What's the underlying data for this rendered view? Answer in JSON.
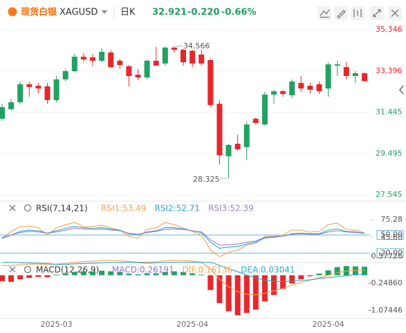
{
  "header": {
    "brand": "现货白银",
    "symbol": "XAGUSD",
    "period": "日K",
    "price": "32.921",
    "change": "-0.220",
    "change_pct": "-0.66%"
  },
  "chart_data": [
    {
      "type": "candlestick",
      "categories": [
        null,
        null,
        null,
        null,
        null,
        null,
        "2025-03",
        null,
        null,
        null,
        null,
        null,
        null,
        null,
        null,
        null,
        null,
        null,
        null,
        null,
        null,
        "2025-04",
        null,
        null,
        null,
        null,
        null,
        null,
        null,
        null,
        null,
        null,
        null,
        null,
        null,
        null,
        "2025-04",
        null,
        null,
        null,
        null
      ],
      "open": [
        31.14,
        31.59,
        31.92,
        32.77,
        32.7,
        32.67,
        32.02,
        33.0,
        33.39,
        34.07,
        34.04,
        33.88,
        34.27,
        33.88,
        33.62,
        33.22,
        33.09,
        33.88,
        33.75,
        34.5,
        34.4,
        34.35,
        34.17,
        33.91,
        31.85,
        29.37,
        29.96,
        29.8,
        31.14,
        30.87,
        32.28,
        32.44,
        32.25,
        32.83,
        32.7,
        32.77,
        32.57,
        33.65,
        33.58,
        33.16,
        33.29
      ],
      "high": [
        31.85,
        32.08,
        32.9,
        32.9,
        32.83,
        32.83,
        33.16,
        33.49,
        34.2,
        34.24,
        34.2,
        34.47,
        34.37,
        33.98,
        33.68,
        33.49,
        33.94,
        34.53,
        34.55,
        34.566,
        34.45,
        34.4,
        34.4,
        33.98,
        32.02,
        29.96,
        30.39,
        31.01,
        31.2,
        32.41,
        32.51,
        32.51,
        33.0,
        33.16,
        32.83,
        32.9,
        33.81,
        33.88,
        33.81,
        33.39,
        33.32
      ],
      "low": [
        31.04,
        31.53,
        31.85,
        32.18,
        32.34,
        31.85,
        31.92,
        32.9,
        33.32,
        33.81,
        33.62,
        33.81,
        33.55,
        33.49,
        32.67,
        32.96,
        33.0,
        33.65,
        33.65,
        34.25,
        33.65,
        33.58,
        33.65,
        31.69,
        28.98,
        28.325,
        29.63,
        29.18,
        30.87,
        30.81,
        31.85,
        32.18,
        32.12,
        32.41,
        32.34,
        32.31,
        32.18,
        33.16,
        33.0,
        32.83,
        32.88
      ],
      "close": [
        31.69,
        31.92,
        32.77,
        32.64,
        32.57,
        32.02,
        33.0,
        33.39,
        34.07,
        33.94,
        33.88,
        34.3,
        33.58,
        33.68,
        33.16,
        33.09,
        33.88,
        33.65,
        34.5,
        34.4,
        33.81,
        33.75,
        33.75,
        31.79,
        29.41,
        29.9,
        29.7,
        30.87,
        30.94,
        32.28,
        32.44,
        32.31,
        32.9,
        32.57,
        32.51,
        32.44,
        33.71,
        33.71,
        33.16,
        33.29,
        32.92
      ],
      "up_color": "#21a163",
      "down_color": "#e8262c",
      "ylim": [
        27.285,
        35.575
      ],
      "yticks": [
        35.346,
        33.396,
        31.445,
        29.495,
        27.545
      ],
      "grid": true,
      "high_label": 34.566,
      "low_label": 28.325
    },
    {
      "type": "line",
      "indicator": "RSI(7,14,21)",
      "series": [
        {
          "label": "RSI1:53.49",
          "color": "#f5a14a",
          "values": [
            44,
            55.8,
            63.8,
            65,
            61.5,
            50,
            61.5,
            67,
            70.7,
            63.8,
            63.8,
            66,
            61.5,
            58,
            47.7,
            44.4,
            59.3,
            61.5,
            70.7,
            67,
            61.5,
            55.8,
            50.1,
            24.9,
            14,
            21.5,
            24.9,
            33,
            36.4,
            47.8,
            47.8,
            50,
            58.1,
            58.1,
            54.7,
            55.8,
            67.3,
            69.6,
            59.3,
            58.1,
            53.49
          ]
        },
        {
          "label": "RSI2:52.71",
          "color": "#26a9c8",
          "values": [
            44,
            50,
            56,
            58,
            57,
            53,
            57,
            61,
            64,
            62,
            61,
            62,
            60,
            58,
            52,
            50,
            55,
            57,
            62,
            62,
            60,
            57,
            54,
            38,
            28,
            30,
            31,
            35,
            38,
            45,
            46,
            48,
            52,
            53,
            52,
            52,
            58,
            60,
            56,
            55,
            52.71
          ]
        },
        {
          "label": "RSI3:52.39",
          "color": "#9b7fd4",
          "values": [
            46,
            50,
            54,
            56,
            55,
            53,
            55,
            58,
            61,
            60,
            59,
            60,
            58,
            57,
            53,
            51,
            54,
            56,
            59,
            60,
            59,
            57,
            55,
            42,
            33,
            34,
            35,
            38,
            40,
            46,
            47,
            48,
            51,
            52,
            51,
            51,
            55,
            57,
            55,
            54,
            52.39
          ]
        }
      ],
      "ylim": [
        16.93,
        75.28
      ],
      "yticks": [
        75.28,
        {
          "value": 50,
          "label": "50.00",
          "highlight": true
        },
        {
          "value": 45.6,
          "label": "45.60"
        },
        16.93,
        {
          "value": 20,
          "label": "20.00",
          "highlight": true
        }
      ]
    },
    {
      "type": "macd",
      "indicator": "MACD(12,26,9)",
      "series": [
        {
          "label": "MACD:0.26191",
          "color": "#8e6fd0",
          "up_color": "#21a163",
          "down_color": "#e8262c",
          "values": [
            -0.18,
            -0.2,
            -0.12,
            -0.08,
            -0.05,
            -0.06,
            0.02,
            0.06,
            0.1,
            0.12,
            0.12,
            0.14,
            0.12,
            0.1,
            0.05,
            0.03,
            0.06,
            0.06,
            0.1,
            0.12,
            0.1,
            0.06,
            0.02,
            -0.45,
            -0.85,
            -1.1,
            -1.22,
            -1.15,
            -1.05,
            -0.8,
            -0.6,
            -0.42,
            -0.25,
            -0.12,
            -0.03,
            0.05,
            0.15,
            0.25,
            0.28,
            0.27,
            0.26191
          ]
        },
        {
          "label": "DIF:0.16136",
          "color": "#f5a14a",
          "values": [
            0.3,
            0.3,
            0.32,
            0.34,
            0.34,
            0.33,
            0.34,
            0.36,
            0.4,
            0.42,
            0.43,
            0.45,
            0.45,
            0.44,
            0.42,
            0.4,
            0.4,
            0.41,
            0.44,
            0.46,
            0.45,
            0.43,
            0.4,
            0.18,
            -0.12,
            -0.35,
            -0.5,
            -0.58,
            -0.6,
            -0.55,
            -0.48,
            -0.4,
            -0.3,
            -0.22,
            -0.15,
            -0.08,
            0.0,
            0.08,
            0.13,
            0.15,
            0.16136
          ]
        },
        {
          "label": "DEA:0.03041",
          "color": "#26a9c8",
          "values": [
            0.39,
            0.4,
            0.38,
            0.38,
            0.37,
            0.36,
            0.33,
            0.33,
            0.35,
            0.36,
            0.37,
            0.38,
            0.39,
            0.39,
            0.4,
            0.385,
            0.37,
            0.38,
            0.39,
            0.4,
            0.4,
            0.4,
            0.39,
            0.4,
            0.3,
            0.2,
            0.11,
            0.0,
            -0.08,
            -0.15,
            -0.18,
            -0.19,
            -0.18,
            -0.16,
            -0.14,
            -0.1,
            -0.07,
            -0.045,
            -0.01,
            0.015,
            0.03041
          ]
        }
      ],
      "ylim": [
        -1.3,
        0.6
      ],
      "yticks": [
        0.57726,
        {
          "value": -0.2486,
          "label": "-0.24860"
        },
        -1.07446
      ]
    }
  ]
}
